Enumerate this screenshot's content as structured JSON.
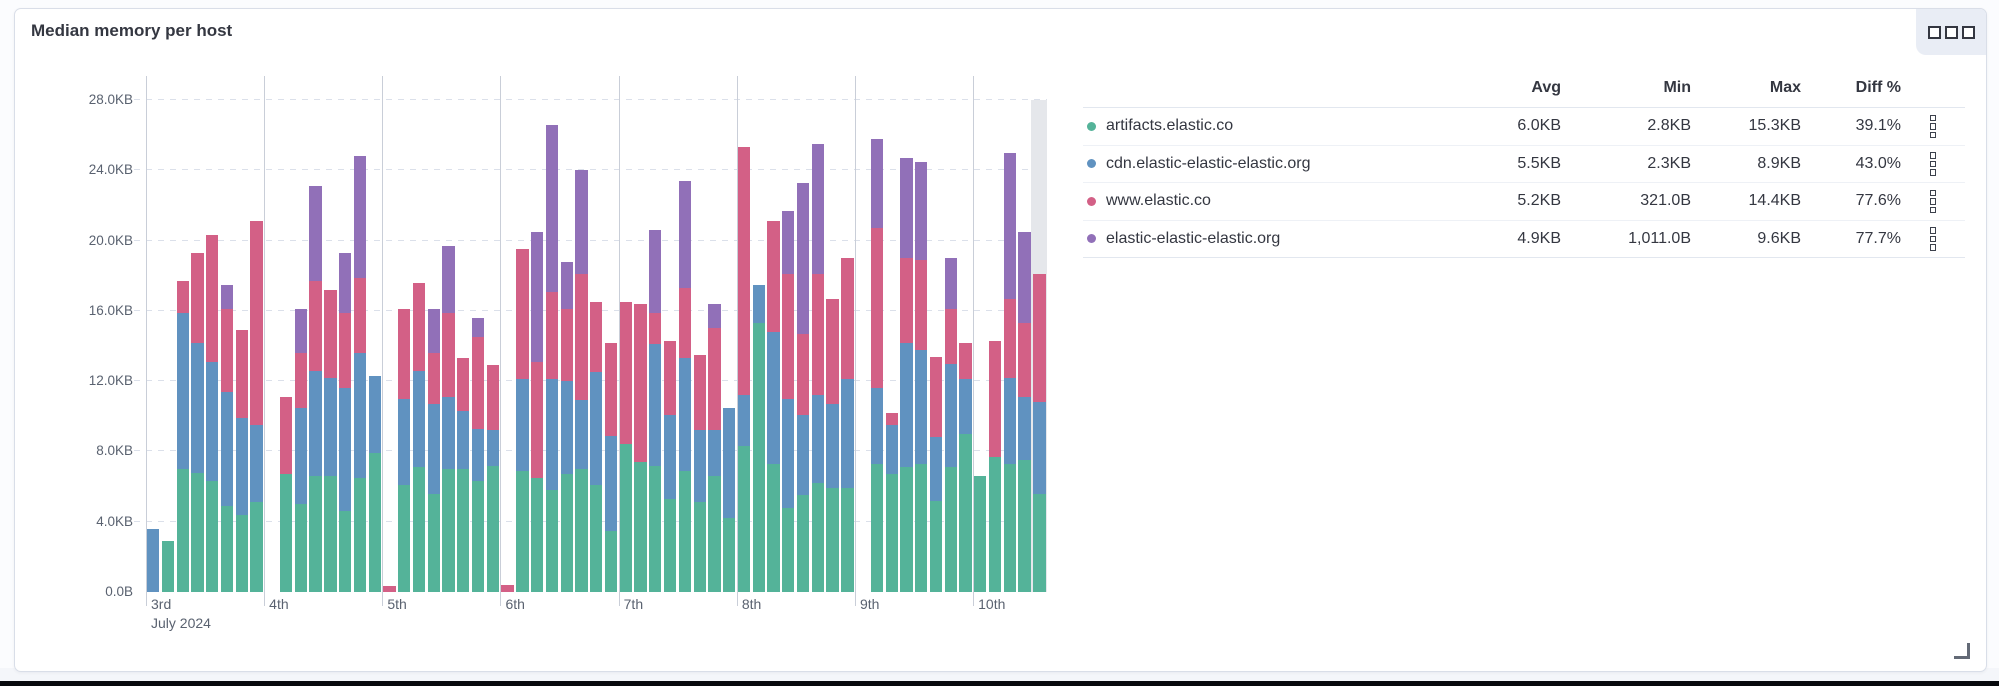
{
  "panel": {
    "title": "Median memory per host",
    "options_icon": "boxes-horizontal-icon",
    "row_action_icon": "boxes-vertical-icon",
    "resize_icon": "resize-corner-icon"
  },
  "chart_data": {
    "type": "bar",
    "stacked": true,
    "title": "Median memory per host",
    "unit": "KB",
    "ylim": [
      0,
      28
    ],
    "yticks": [
      "0.0B",
      "4.0KB",
      "8.0KB",
      "12.0KB",
      "16.0KB",
      "20.0KB",
      "24.0KB",
      "28.0KB"
    ],
    "x_axis_sublabel": "July 2024",
    "grid": "dashed-horizontal",
    "legend_position": "right",
    "partial_bucket_note": "last bucket shaded gray",
    "series": [
      {
        "name": "artifacts.elastic.co",
        "color": "#54B399"
      },
      {
        "name": "cdn.elastic-elastic-elastic.org",
        "color": "#6092C0"
      },
      {
        "name": "www.elastic.co",
        "color": "#D36086"
      },
      {
        "name": "elastic-elastic-elastic.org",
        "color": "#9170B8"
      }
    ],
    "days": [
      {
        "label": "3rd",
        "bars": [
          [
            0,
            3.6,
            0,
            0
          ],
          [
            2.9,
            0,
            0,
            0
          ],
          [
            7.0,
            8.9,
            1.8,
            0
          ],
          [
            6.8,
            7.4,
            5.1,
            0
          ],
          [
            6.3,
            6.8,
            7.2,
            0
          ],
          [
            4.9,
            6.5,
            4.7,
            1.4
          ],
          [
            4.4,
            5.5,
            5.0,
            0
          ],
          [
            5.1,
            4.4,
            11.6,
            0
          ]
        ]
      },
      {
        "label": "4th",
        "bars": [
          null,
          [
            6.7,
            0,
            4.4,
            0
          ],
          [
            5.0,
            5.5,
            3.1,
            2.5
          ],
          [
            6.6,
            6.0,
            5.1,
            5.4
          ],
          [
            6.6,
            5.6,
            5.0,
            0
          ],
          [
            4.6,
            7.0,
            4.3,
            3.4
          ],
          [
            6.5,
            7.1,
            4.3,
            6.9
          ],
          [
            7.9,
            4.4,
            0,
            0
          ]
        ]
      },
      {
        "label": "5th",
        "bars": [
          [
            0,
            0,
            0.32,
            0
          ],
          [
            6.1,
            4.9,
            5.1,
            0
          ],
          [
            7.1,
            5.5,
            5.0,
            0
          ],
          [
            5.6,
            5.1,
            2.9,
            2.5
          ],
          [
            7.0,
            4.1,
            4.8,
            3.8
          ],
          [
            7.0,
            3.3,
            3.0,
            0
          ],
          [
            6.3,
            3.0,
            5.2,
            1.1
          ],
          [
            7.2,
            2.0,
            3.7,
            0
          ]
        ]
      },
      {
        "label": "6th",
        "bars": [
          [
            0,
            0,
            0.4,
            0
          ],
          [
            6.9,
            5.2,
            7.4,
            0
          ],
          [
            6.5,
            0,
            6.6,
            7.4
          ],
          [
            5.8,
            6.3,
            5.0,
            9.5
          ],
          [
            6.7,
            5.3,
            4.1,
            2.7
          ],
          [
            7.0,
            3.9,
            7.2,
            5.9
          ],
          [
            6.1,
            6.4,
            4.0,
            0
          ],
          [
            3.5,
            5.4,
            5.3,
            0
          ]
        ]
      },
      {
        "label": "7th",
        "bars": [
          [
            8.4,
            0,
            8.1,
            0
          ],
          [
            7.4,
            0,
            9.0,
            0
          ],
          [
            7.2,
            6.9,
            1.8,
            4.7
          ],
          [
            5.3,
            4.8,
            4.2,
            0
          ],
          [
            6.9,
            6.4,
            4.0,
            6.1
          ],
          [
            5.1,
            4.1,
            4.3,
            0
          ],
          [
            6.6,
            2.6,
            5.8,
            1.4
          ],
          [
            4.2,
            6.3,
            0,
            0
          ]
        ]
      },
      {
        "label": "8th",
        "bars": [
          [
            8.3,
            2.9,
            14.1,
            0
          ],
          [
            15.3,
            2.2,
            0,
            0
          ],
          [
            7.3,
            7.5,
            6.3,
            0
          ],
          [
            4.8,
            6.2,
            7.1,
            3.6
          ],
          [
            5.5,
            4.6,
            4.6,
            8.6
          ],
          [
            6.2,
            5.0,
            6.9,
            7.4
          ],
          [
            5.9,
            4.8,
            6.0,
            0
          ],
          [
            5.9,
            6.2,
            6.9,
            0
          ]
        ]
      },
      {
        "label": "9th",
        "bars": [
          null,
          [
            7.3,
            4.3,
            9.1,
            5.1
          ],
          [
            6.7,
            2.8,
            0.7,
            0
          ],
          [
            7.1,
            7.1,
            4.8,
            5.7
          ],
          [
            7.3,
            6.5,
            5.1,
            5.6
          ],
          [
            5.2,
            3.6,
            4.6,
            0
          ],
          [
            7.1,
            5.9,
            3.1,
            2.9
          ],
          [
            9.0,
            3.1,
            2.1,
            0
          ]
        ]
      },
      {
        "label": "10th",
        "bars": [
          [
            6.6,
            0,
            0,
            0
          ],
          [
            7.7,
            0,
            6.6,
            0
          ],
          [
            7.3,
            4.9,
            4.5,
            8.3
          ],
          [
            7.5,
            3.6,
            4.2,
            5.2
          ],
          [
            5.6,
            5.2,
            7.3,
            0
          ]
        ]
      }
    ]
  },
  "legend": {
    "headers": [
      "Avg",
      "Min",
      "Max",
      "Diff %"
    ],
    "rows": [
      {
        "name": "artifacts.elastic.co",
        "color": "#54B399",
        "avg": "6.0KB",
        "min": "2.8KB",
        "max": "15.3KB",
        "diff": "39.1%"
      },
      {
        "name": "cdn.elastic-elastic-elastic.org",
        "color": "#6092C0",
        "avg": "5.5KB",
        "min": "2.3KB",
        "max": "8.9KB",
        "diff": "43.0%"
      },
      {
        "name": "www.elastic.co",
        "color": "#D36086",
        "avg": "5.2KB",
        "min": "321.0B",
        "max": "14.4KB",
        "diff": "77.6%"
      },
      {
        "name": "elastic-elastic-elastic.org",
        "color": "#9170B8",
        "avg": "4.9KB",
        "min": "1,011.0B",
        "max": "9.6KB",
        "diff": "77.7%"
      }
    ]
  }
}
